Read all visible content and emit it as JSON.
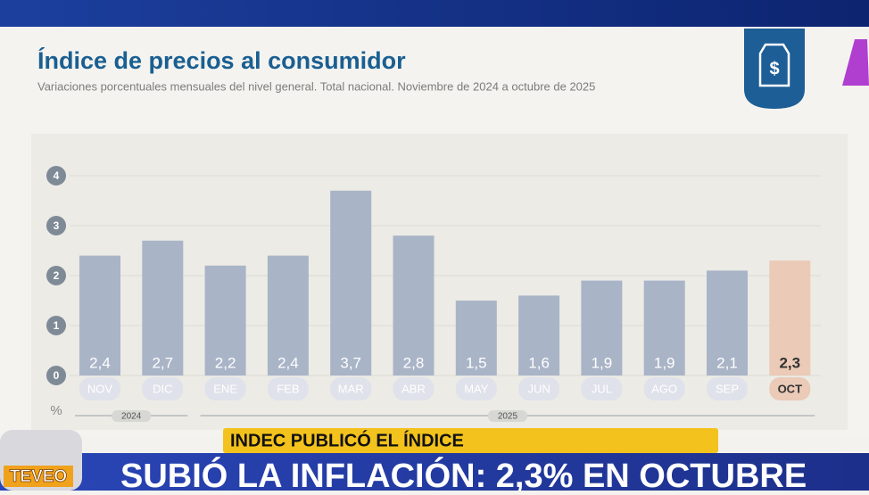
{
  "chart_data": {
    "type": "bar",
    "title": "Índice de precios al consumidor",
    "subtitle": "Variaciones porcentuales mensuales del nivel general. Total nacional. Noviembre de 2024 a octubre de 2025",
    "y_label": "%",
    "categories": [
      "NOV",
      "DIC",
      "ENE",
      "FEB",
      "MAR",
      "ABR",
      "MAY",
      "JUN",
      "JUL",
      "AGO",
      "SEP",
      "OCT"
    ],
    "values": [
      2.4,
      2.7,
      2.2,
      2.4,
      3.7,
      2.8,
      1.5,
      1.6,
      1.9,
      1.9,
      2.1,
      2.3
    ],
    "value_labels": [
      "2,4",
      "2,7",
      "2,2",
      "2,4",
      "3,7",
      "2,8",
      "1,5",
      "1,6",
      "1,9",
      "1,9",
      "2,1",
      "2,3"
    ],
    "colors": [
      "#a9b4c7",
      "#a9b4c7",
      "#a9b4c7",
      "#a9b4c7",
      "#a9b4c7",
      "#a9b4c7",
      "#a9b4c7",
      "#a9b4c7",
      "#a9b4c7",
      "#a9b4c7",
      "#a9b4c7",
      "#ebcab7"
    ],
    "year_groups": [
      {
        "label": "2024",
        "categories": [
          "NOV",
          "DIC"
        ]
      },
      {
        "label": "2025",
        "categories": [
          "ENE",
          "FEB",
          "MAR",
          "ABR",
          "MAY",
          "JUN",
          "JUL",
          "AGO",
          "SEP",
          "OCT"
        ]
      }
    ],
    "ylim": [
      0,
      4
    ],
    "yticks": [
      0,
      1,
      2,
      3,
      4
    ],
    "grid": true
  },
  "broadcast": {
    "tag": "INDEC PUBLICÓ EL ÍNDICE",
    "headline": "SUBIÓ LA INFLACIÓN: 2,3% EN OCTUBRE",
    "logo": "TEVEO"
  }
}
